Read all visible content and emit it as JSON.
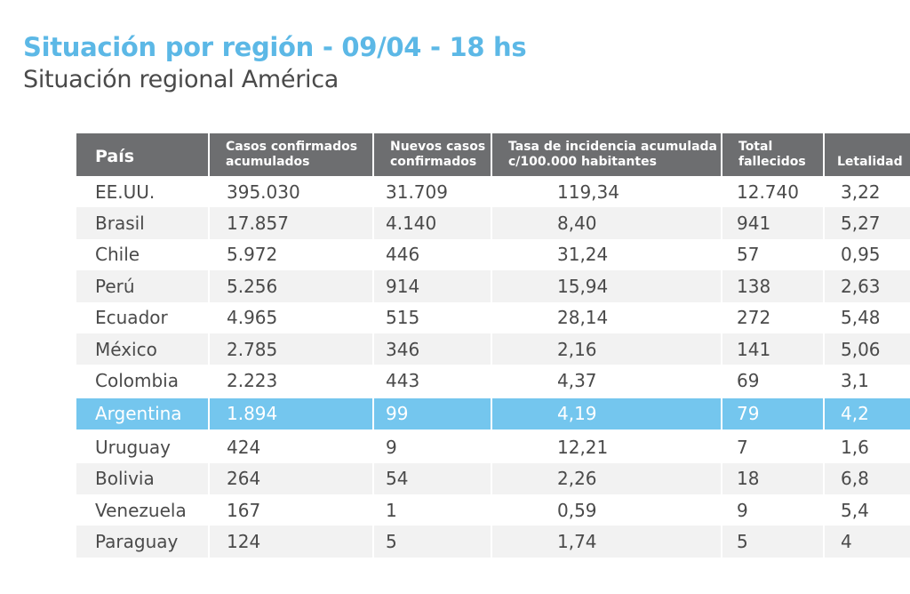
{
  "header": {
    "title": "Situación por región - 09/04 - 18 hs",
    "subtitle": "Situación regional América"
  },
  "table": {
    "columns": [
      "País",
      "Casos confirmados acumulados",
      "Nuevos casos confirmados",
      "Tasa de incidencia acumulada c/100.000 habitantes",
      "Total fallecidos",
      "Letalidad"
    ],
    "highlight_color": "#74c6ee",
    "header_color": "#6d6e70",
    "title_color": "#5cb8e6",
    "rows": [
      [
        "EE.UU.",
        "395.030",
        "31.709",
        "119,34",
        "12.740",
        "3,22"
      ],
      [
        "Brasil",
        "17.857",
        "4.140",
        "8,40",
        "941",
        "5,27"
      ],
      [
        "Chile",
        "5.972",
        "446",
        "31,24",
        "57",
        "0,95"
      ],
      [
        "Perú",
        "5.256",
        "914",
        "15,94",
        "138",
        "2,63"
      ],
      [
        "Ecuador",
        "4.965",
        "515",
        "28,14",
        "272",
        "5,48"
      ],
      [
        "México",
        "2.785",
        "346",
        "2,16",
        "141",
        "5,06"
      ],
      [
        "Colombia",
        "2.223",
        "443",
        "4,37",
        "69",
        "3,1"
      ],
      [
        "Argentina",
        "1.894",
        "99",
        "4,19",
        "79",
        "4,2"
      ],
      [
        "Uruguay",
        "424",
        "9",
        "12,21",
        "7",
        "1,6"
      ],
      [
        "Bolivia",
        "264",
        "54",
        "2,26",
        "18",
        "6,8"
      ],
      [
        "Venezuela",
        "167",
        "1",
        "0,59",
        "9",
        "5,4"
      ],
      [
        "Paraguay",
        "124",
        "5",
        "1,74",
        "5",
        "4"
      ]
    ]
  }
}
